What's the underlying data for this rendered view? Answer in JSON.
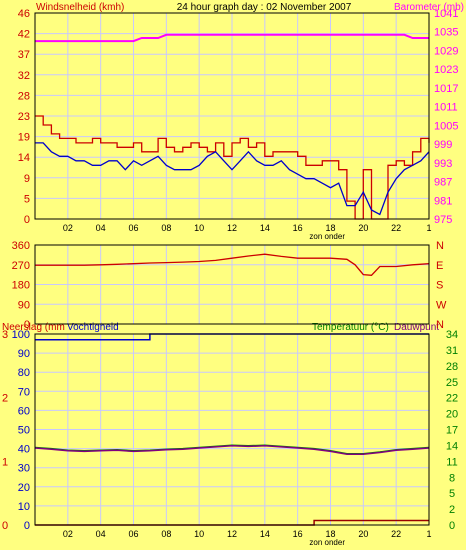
{
  "header": {
    "title": "24 hour graph day : 02 November 2007",
    "left_label": "Windsnelheid (kmh)",
    "right_label": "Barometer (mb)"
  },
  "colors": {
    "background": "#FFFF80",
    "grid": "#C8C8FF",
    "red": "#CC0000",
    "blue": "#0000CC",
    "magenta": "#FF00FF",
    "green": "#008000",
    "dark_red": "#990000",
    "purple": "#800080"
  },
  "x_axis": {
    "ticks": [
      "02",
      "04",
      "06",
      "08",
      "10",
      "12",
      "14",
      "16",
      "18",
      "20",
      "22",
      "1"
    ],
    "sun_label": "zon onder"
  },
  "chart_data": [
    {
      "type": "line",
      "title": "24 hour graph day : 02 November 2007",
      "x": [
        0,
        0.5,
        1,
        1.5,
        2,
        2.5,
        3,
        3.5,
        4,
        4.5,
        5,
        5.5,
        6,
        6.5,
        7,
        7.5,
        8,
        8.5,
        9,
        9.5,
        10,
        10.5,
        11,
        11.5,
        12,
        12.5,
        13,
        13.5,
        14,
        14.5,
        15,
        15.5,
        16,
        16.5,
        17,
        17.5,
        18,
        18.5,
        19,
        19.5,
        20,
        20.5,
        21,
        21.5,
        22,
        22.5,
        23,
        23.5,
        24
      ],
      "xlabel": "",
      "ylabel": "Windsnelheid (kmh)",
      "ylim": [
        0,
        46
      ],
      "y_ticks": [
        "0",
        "5",
        "9",
        "14",
        "19",
        "23",
        "28",
        "32",
        "37",
        "42",
        "46"
      ],
      "y2label": "Barometer (mb)",
      "y2lim": [
        975,
        1041
      ],
      "y2_ticks": [
        "975",
        "981",
        "987",
        "993",
        "999",
        "1005",
        "1011",
        "1017",
        "1023",
        "1029",
        "1035",
        "1041"
      ],
      "grid": true,
      "series": [
        {
          "color": "#CC0000",
          "axis": "left",
          "step": true,
          "values": [
            23,
            21,
            19,
            18,
            18,
            17,
            17,
            18,
            17,
            17,
            16,
            16,
            17,
            15,
            15,
            18,
            16,
            15,
            16,
            17,
            16,
            15,
            17,
            14,
            17,
            18,
            16,
            17,
            14,
            15,
            15,
            15,
            14,
            12,
            12,
            13,
            13,
            11,
            4,
            0,
            11,
            0,
            0,
            12,
            13,
            12,
            15,
            18,
            17
          ]
        },
        {
          "color": "#0000CC",
          "axis": "left",
          "values": [
            17,
            17,
            15,
            14,
            14,
            13,
            13,
            12,
            12,
            13,
            13,
            11,
            13,
            12,
            13,
            14,
            12,
            11,
            11,
            11,
            12,
            14,
            15,
            13,
            11,
            13,
            15,
            13,
            12,
            12,
            13,
            11,
            10,
            9,
            9,
            8,
            7,
            8,
            3,
            3,
            6,
            2,
            1,
            6,
            9,
            11,
            12,
            13,
            15
          ]
        },
        {
          "color": "#FF00FF",
          "axis": "right",
          "values": [
            1032,
            1032,
            1032,
            1032,
            1032,
            1032,
            1032,
            1032,
            1032,
            1032,
            1032,
            1032,
            1032,
            1033,
            1033,
            1033,
            1034,
            1034,
            1034,
            1034,
            1034,
            1034,
            1034,
            1034,
            1034,
            1034,
            1034,
            1034,
            1034,
            1034,
            1034,
            1034,
            1034,
            1034,
            1034,
            1034,
            1034,
            1034,
            1034,
            1034,
            1034,
            1034,
            1034,
            1034,
            1034,
            1034,
            1033,
            1033,
            1033
          ]
        }
      ]
    },
    {
      "type": "line",
      "title": "",
      "x": [
        0,
        1,
        2,
        3,
        4,
        5,
        6,
        7,
        8,
        9,
        10,
        11,
        12,
        13,
        14,
        15,
        16,
        17,
        18,
        19,
        19.5,
        20,
        20.5,
        21,
        22,
        23,
        24
      ],
      "ylim": [
        0,
        360
      ],
      "y_ticks": [
        "0",
        "90",
        "180",
        "270",
        "360"
      ],
      "y2_ticks": [
        "N",
        "W",
        "S",
        "E",
        "N"
      ],
      "grid": true,
      "series": [
        {
          "color": "#CC0000",
          "axis": "left",
          "values": [
            268,
            268,
            268,
            268,
            270,
            272,
            275,
            278,
            280,
            282,
            285,
            290,
            300,
            310,
            318,
            308,
            300,
            300,
            300,
            295,
            270,
            225,
            222,
            262,
            262,
            270,
            275
          ]
        }
      ]
    },
    {
      "type": "line",
      "title": "",
      "left_label_1": "Neerslag (mm",
      "left_label_2": "Vochtigheid",
      "right_label_1": "Temperatuur (°C)",
      "right_label_2": "Dauwpunt",
      "x": [
        0,
        1,
        2,
        3,
        4,
        5,
        6,
        7,
        8,
        9,
        10,
        11,
        12,
        13,
        14,
        15,
        16,
        17,
        18,
        19,
        20,
        21,
        22,
        23,
        24
      ],
      "ylim_rain": [
        0,
        3
      ],
      "rain_ticks": [
        "0",
        "1",
        "2",
        "3"
      ],
      "ylim_hum": [
        0,
        100
      ],
      "hum_ticks": [
        "0",
        "10",
        "20",
        "30",
        "40",
        "50",
        "60",
        "70",
        "80",
        "90",
        "100"
      ],
      "ylim_temp": [
        0,
        34
      ],
      "temp_ticks": [
        "0",
        "2",
        "5",
        "8",
        "11",
        "14",
        "17",
        "20",
        "22",
        "25",
        "28",
        "31",
        "34"
      ],
      "temp_tick_values": [
        0,
        2.83,
        5.67,
        8.5,
        11.33,
        14.17,
        17,
        19.83,
        22.67,
        25.5,
        28.33,
        31.17,
        34
      ],
      "grid": true,
      "series": [
        {
          "color": "#0000CC",
          "axis": "humidity",
          "step": true,
          "values": [
            97,
            97,
            97,
            97,
            97,
            97,
            97,
            100,
            100,
            100,
            100,
            100,
            100,
            100,
            100,
            100,
            100,
            100,
            100,
            100,
            100,
            100,
            100,
            100,
            100
          ]
        },
        {
          "color": "#008000",
          "axis": "temperature",
          "values": [
            13.8,
            13.6,
            13.3,
            13.2,
            13.3,
            13.4,
            13.2,
            13.3,
            13.5,
            13.6,
            13.8,
            14.0,
            14.2,
            14.1,
            14.2,
            14.0,
            13.8,
            13.6,
            13.2,
            12.7,
            12.7,
            13.0,
            13.4,
            13.6,
            13.8
          ]
        },
        {
          "color": "#800080",
          "axis": "temperature",
          "values": [
            13.7,
            13.5,
            13.2,
            13.1,
            13.2,
            13.3,
            13.1,
            13.2,
            13.4,
            13.5,
            13.7,
            13.9,
            14.1,
            14.0,
            14.1,
            13.9,
            13.7,
            13.5,
            13.1,
            12.6,
            12.6,
            12.9,
            13.3,
            13.5,
            13.7
          ]
        },
        {
          "color": "#990000",
          "axis": "rain",
          "step": true,
          "values": [
            0,
            0,
            0,
            0,
            0,
            0,
            0,
            0,
            0,
            0,
            0,
            0,
            0,
            0,
            0,
            0,
            0,
            0.07,
            0.07,
            0.07,
            0.07,
            0.07,
            0.07,
            0.07,
            0.07
          ]
        }
      ]
    }
  ]
}
